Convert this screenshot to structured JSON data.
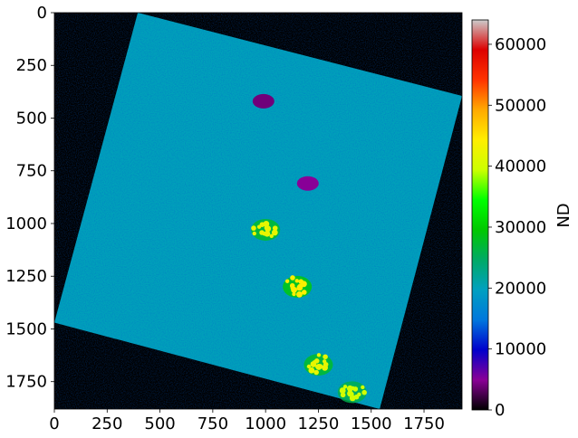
{
  "chart_data": {
    "type": "heatmap",
    "title": "",
    "xlabel": "",
    "ylabel": "",
    "xlim": [
      0,
      1930
    ],
    "ylim": [
      1880,
      0
    ],
    "x_ticks": [
      0,
      250,
      500,
      750,
      1000,
      1250,
      1500,
      1750
    ],
    "y_ticks": [
      0,
      250,
      500,
      750,
      1000,
      1250,
      1500,
      1750
    ],
    "x_tick_labels": [
      "0",
      "250",
      "500",
      "750",
      "1000",
      "1250",
      "1500",
      "1750"
    ],
    "y_tick_labels": [
      "0",
      "250",
      "500",
      "750",
      "1000",
      "1250",
      "1500",
      "1750"
    ],
    "colormap": "nipy_spectral",
    "colorbar": {
      "label": "ND",
      "range": [
        0,
        64000
      ],
      "ticks": [
        0,
        10000,
        20000,
        30000,
        40000,
        50000,
        60000
      ],
      "tick_labels": [
        "0",
        "10000",
        "20000",
        "30000",
        "40000",
        "50000",
        "60000"
      ],
      "colors": [
        "#000000",
        "#8a0096",
        "#0000cc",
        "#0077dd",
        "#00a0c0",
        "#00aa66",
        "#00c800",
        "#00ff00",
        "#ccff00",
        "#ffee00",
        "#ffaa00",
        "#ff3300",
        "#dd0000",
        "#cccccc"
      ]
    },
    "background_color": "#000000",
    "scene_footprint_corners": [
      [
        395,
        0
      ],
      [
        1930,
        395
      ],
      [
        1540,
        1880
      ],
      [
        0,
        1470
      ]
    ],
    "dominant_value_range": [
      15000,
      25000
    ],
    "high_value_features": [
      {
        "description": "bright yellow-green cluster",
        "x": 1000,
        "y": 1030,
        "value": 42000
      },
      {
        "description": "bright yellow-green cluster",
        "x": 1150,
        "y": 1300,
        "value": 44000
      },
      {
        "description": "bright yellow-green cluster",
        "x": 1250,
        "y": 1670,
        "value": 42000
      },
      {
        "description": "bright yellow-green cluster",
        "x": 1410,
        "y": 1800,
        "value": 40000
      }
    ],
    "low_value_features": [
      {
        "description": "purple lake",
        "x": 990,
        "y": 420,
        "value": 4000
      },
      {
        "description": "purple patch",
        "x": 1200,
        "y": 810,
        "value": 5000
      }
    ]
  }
}
